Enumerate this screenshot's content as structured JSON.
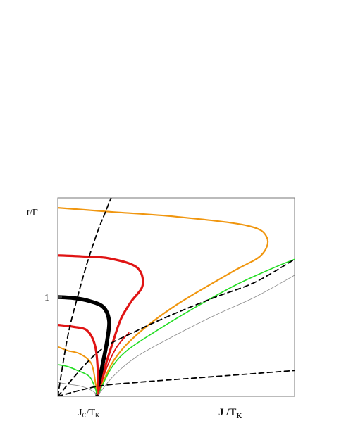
{
  "chart_data": {
    "type": "line",
    "xlabel_main": "J /T",
    "xlabel_sub": "K",
    "ylabel_main": "t/",
    "ylabel_greek": "Γ",
    "ytick_label": "1",
    "xtick_main": "J",
    "xtick_sub1": "C",
    "xtick_mid": "/T",
    "xtick_sub2": "K",
    "xlim": [
      0,
      6
    ],
    "ylim": [
      0,
      2
    ],
    "critical_x": 1,
    "series": [
      {
        "color": "#f0960f",
        "width": 2.2,
        "dash": false,
        "points": [
          [
            1,
            0
          ],
          [
            1.4,
            0.35
          ],
          [
            2,
            0.62
          ],
          [
            3,
            0.92
          ],
          [
            4.4,
            1.25
          ],
          [
            5.15,
            1.42
          ],
          [
            5.3,
            1.6
          ],
          [
            4.8,
            1.72
          ],
          [
            3,
            1.81
          ],
          [
            1.3,
            1.86
          ],
          [
            0,
            1.9
          ]
        ]
      },
      {
        "color": "#e01414",
        "width": 3.2,
        "dash": false,
        "points": [
          [
            1,
            0
          ],
          [
            1.2,
            0.3
          ],
          [
            1.4,
            0.55
          ],
          [
            1.6,
            0.78
          ],
          [
            1.85,
            0.95
          ],
          [
            2.15,
            1.12
          ],
          [
            2.0,
            1.3
          ],
          [
            1.3,
            1.39
          ],
          [
            0.6,
            1.41
          ],
          [
            0,
            1.42
          ]
        ]
      },
      {
        "color": "#000000",
        "width": 5.5,
        "dash": false,
        "points": [
          [
            1,
            0
          ],
          [
            1.05,
            0.15
          ],
          [
            1.15,
            0.35
          ],
          [
            1.25,
            0.56
          ],
          [
            1.3,
            0.76
          ],
          [
            1.15,
            0.9
          ],
          [
            0.8,
            0.96
          ],
          [
            0.4,
            0.99
          ],
          [
            0,
            1.0
          ]
        ]
      },
      {
        "color": "#e01414",
        "width": 3.2,
        "dash": false,
        "points": [
          [
            1,
            0
          ],
          [
            1.02,
            0.2
          ],
          [
            0.95,
            0.5
          ],
          [
            0.75,
            0.66
          ],
          [
            0.4,
            0.7
          ],
          [
            0,
            0.72
          ]
        ]
      },
      {
        "color": "#f0960f",
        "width": 2.0,
        "dash": false,
        "points": [
          [
            1,
            0
          ],
          [
            0.96,
            0.12
          ],
          [
            0.85,
            0.33
          ],
          [
            0.55,
            0.43
          ],
          [
            0.25,
            0.46
          ],
          [
            0,
            0.5
          ]
        ]
      },
      {
        "color": "#22dd22",
        "width": 1.6,
        "dash": false,
        "points": [
          [
            1,
            0
          ],
          [
            0.95,
            0.08
          ],
          [
            0.8,
            0.2
          ],
          [
            0.5,
            0.26
          ],
          [
            0.25,
            0.3
          ],
          [
            0,
            0.32
          ]
        ]
      },
      {
        "color": "#888888",
        "width": 0.8,
        "dash": false,
        "points": [
          [
            1,
            0
          ],
          [
            0.9,
            0.05
          ],
          [
            0.6,
            0.1
          ],
          [
            0.3,
            0.12
          ],
          [
            0,
            0.14
          ]
        ]
      },
      {
        "color": "#22dd22",
        "width": 1.6,
        "dash": false,
        "points": [
          [
            1,
            0
          ],
          [
            1.35,
            0.28
          ],
          [
            1.75,
            0.46
          ],
          [
            2.5,
            0.66
          ],
          [
            3.5,
            0.9
          ],
          [
            4.5,
            1.12
          ],
          [
            5.5,
            1.3
          ],
          [
            6,
            1.38
          ]
        ]
      },
      {
        "color": "#e01414",
        "width": 1.8,
        "dash": false,
        "points": [
          [
            1,
            0
          ],
          [
            1.25,
            0.3
          ],
          [
            1.5,
            0.5
          ],
          [
            1.8,
            0.64
          ]
        ]
      },
      {
        "color": "#888888",
        "width": 0.8,
        "dash": false,
        "points": [
          [
            1,
            0
          ],
          [
            1.4,
            0.2
          ],
          [
            2,
            0.4
          ],
          [
            3,
            0.62
          ],
          [
            4,
            0.82
          ],
          [
            5,
            1.0
          ],
          [
            6,
            1.22
          ]
        ]
      },
      {
        "color": "#000000",
        "width": 1.8,
        "dash": true,
        "points": [
          [
            0,
            0
          ],
          [
            1,
            0.44
          ],
          [
            2,
            0.66
          ],
          [
            3,
            0.84
          ],
          [
            4,
            1.0
          ],
          [
            5,
            1.15
          ],
          [
            6,
            1.38
          ]
        ]
      },
      {
        "color": "#000000",
        "width": 1.8,
        "dash": true,
        "points": [
          [
            0,
            0
          ],
          [
            1,
            0.1
          ],
          [
            2,
            0.14
          ],
          [
            3,
            0.17
          ],
          [
            4,
            0.2
          ],
          [
            5,
            0.23
          ],
          [
            6,
            0.26
          ]
        ]
      },
      {
        "color": "#000000",
        "width": 1.8,
        "dash": true,
        "points": [
          [
            0,
            0
          ],
          [
            0.25,
            0.6
          ],
          [
            0.5,
            1.0
          ],
          [
            0.75,
            1.35
          ],
          [
            1,
            1.65
          ],
          [
            1.2,
            1.85
          ],
          [
            1.35,
            2.0
          ]
        ]
      }
    ]
  }
}
